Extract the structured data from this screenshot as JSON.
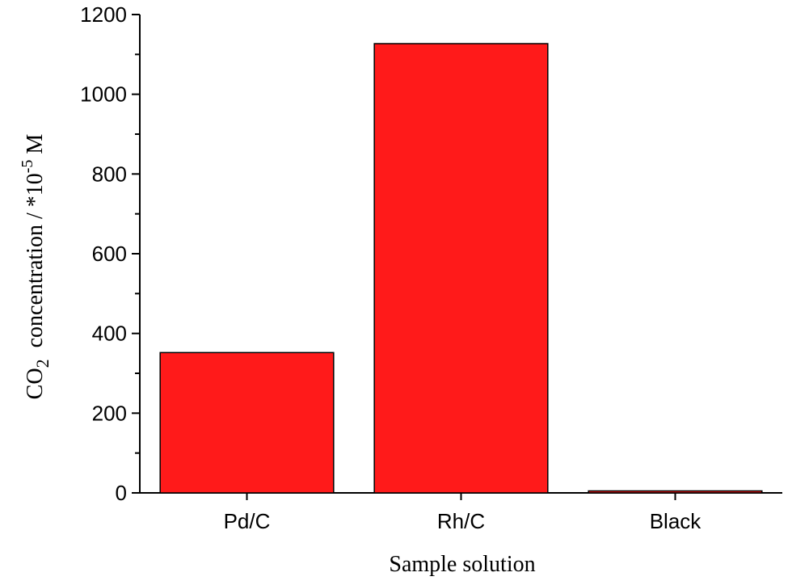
{
  "chart_data": {
    "type": "bar",
    "categories": [
      "Pd/C",
      "Rh/C",
      "Black"
    ],
    "values": [
      352,
      1127,
      5
    ],
    "xlabel": "Sample solution",
    "ylabel": {
      "prefix": "CO",
      "subscript": "2",
      "middle": "  concentration / *10",
      "superscript": "-5",
      "suffix": " M"
    },
    "ylim": [
      0,
      1200
    ],
    "yticks": [
      0,
      200,
      400,
      600,
      800,
      1000,
      1200
    ],
    "yminor_step": 100,
    "bar_color": "#ff1a1a",
    "bar_edge_color": "#000000",
    "grid": false,
    "legend": "none"
  }
}
